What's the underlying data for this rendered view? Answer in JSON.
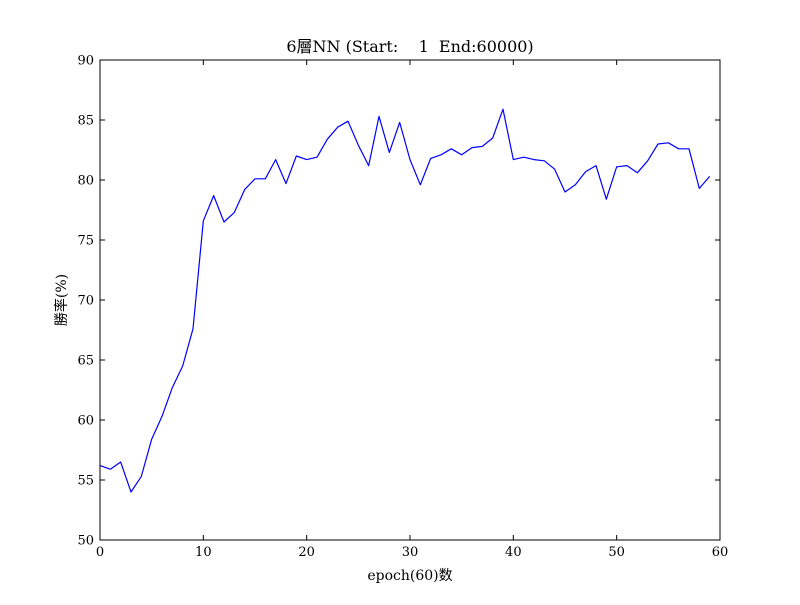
{
  "chart_data": {
    "type": "line",
    "title": "6層NN (Start:    1  End:60000)",
    "xlabel": "epoch(60)数",
    "ylabel": "勝率(%)",
    "xlim": [
      0,
      60
    ],
    "ylim": [
      50,
      90
    ],
    "xticks": [
      0,
      10,
      20,
      30,
      40,
      50,
      60
    ],
    "yticks": [
      50,
      55,
      60,
      65,
      70,
      75,
      80,
      85,
      90
    ],
    "grid": false,
    "series": [
      {
        "color": "#0000ff",
        "x": [
          0,
          1,
          2,
          3,
          4,
          5,
          6,
          7,
          8,
          9,
          10,
          11,
          12,
          13,
          14,
          15,
          16,
          17,
          18,
          19,
          20,
          21,
          22,
          23,
          24,
          25,
          26,
          27,
          28,
          29,
          30,
          31,
          32,
          33,
          34,
          35,
          36,
          37,
          38,
          39,
          40,
          41,
          42,
          43,
          44,
          45,
          46,
          47,
          48,
          49,
          50,
          51,
          52,
          53,
          54,
          55,
          56,
          57,
          58,
          59
        ],
        "values": [
          56.2,
          55.9,
          56.5,
          54.0,
          55.3,
          58.4,
          60.3,
          62.7,
          64.5,
          67.6,
          76.6,
          78.7,
          76.5,
          77.3,
          79.2,
          80.1,
          80.1,
          81.7,
          79.7,
          82.0,
          81.7,
          81.9,
          83.4,
          84.4,
          84.9,
          82.9,
          81.2,
          85.3,
          82.3,
          84.8,
          81.7,
          79.6,
          81.8,
          82.1,
          82.6,
          82.1,
          82.7,
          82.8,
          83.5,
          85.9,
          81.7,
          81.9,
          81.7,
          81.6,
          80.9,
          79.0,
          79.6,
          80.7,
          81.2,
          78.4,
          81.1,
          81.2,
          80.6,
          81.6,
          83.0,
          83.1,
          82.6,
          82.6,
          79.3,
          80.3
        ]
      }
    ]
  }
}
